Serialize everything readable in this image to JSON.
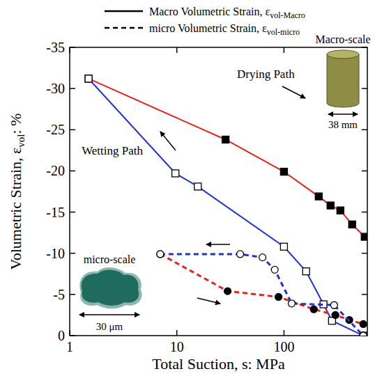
{
  "chart_data": {
    "type": "line",
    "log": "x",
    "grid": false,
    "x_label": {
      "text": "Total Suction, s: MPa"
    },
    "y_label": {
      "text": "Volumetric Strain, ε",
      "sub": "vol",
      "after": ": %"
    },
    "xlim": [
      1,
      600
    ],
    "xticks": [
      1,
      10,
      100
    ],
    "ylim": [
      0,
      -35
    ],
    "yticks": [
      0,
      -5,
      -10,
      -15,
      -20,
      -25,
      -30,
      -35
    ],
    "legend": "top",
    "legend_entries": [
      {
        "text": "Macro Volumetric Strain, ε",
        "sub": "vol-Macro",
        "line_style": "solid"
      },
      {
        "text": "micro Volumetric Strain, ε",
        "sub": "vol-micro",
        "line_style": "dashed"
      }
    ],
    "annotations": [
      "Drying Path",
      "Wetting Path",
      "Macro-scale",
      "38 mm",
      "micro-scale",
      "30 μm"
    ],
    "series": [
      {
        "color": "#e3241b",
        "marker": "filled-square",
        "line_style": "solid",
        "x": [
          1.5,
          28.5,
          100,
          211,
          272,
          336,
          433,
          567
        ],
        "values": [
          -31.2,
          -23.8,
          -19.9,
          -16.9,
          -15.8,
          -15.2,
          -13.5,
          -12
        ]
      },
      {
        "color": "#2233cc",
        "marker": "open-square",
        "line_style": "solid",
        "x": [
          1.5,
          9.7,
          15.7,
          100,
          161,
          234,
          281,
          550
        ],
        "values": [
          -31.2,
          -19.7,
          -18.1,
          -10.8,
          -7.8,
          -3.8,
          -1.8,
          0
        ]
      },
      {
        "color": "#e3241b",
        "marker": "filled-circle",
        "line_style": "dashed",
        "x": [
          7.0,
          29.8,
          89,
          190,
          302,
          407,
          550
        ],
        "values": [
          -9.9,
          -5.4,
          -4.7,
          -3.2,
          -2.5,
          -1.9,
          -1.4
        ]
      },
      {
        "color": "#2233cc",
        "marker": "open-circle",
        "line_style": "dashed",
        "x": [
          7.0,
          39,
          63,
          82,
          118,
          294,
          550
        ],
        "values": [
          -9.9,
          -9.9,
          -9.5,
          -8.0,
          -3.9,
          -3.7,
          0
        ]
      }
    ]
  }
}
